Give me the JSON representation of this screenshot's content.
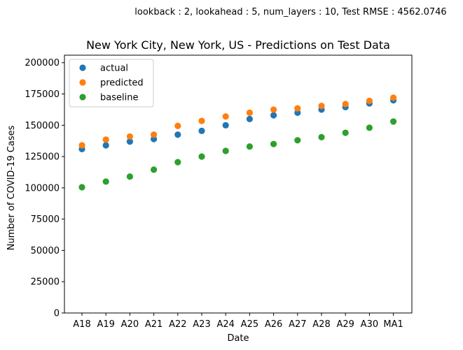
{
  "chart_data": {
    "type": "scatter",
    "suptitle": "lookback : 2, lookahead : 5, num_layers : 10, Test RMSE : 4562.0746",
    "title": "New York City, New York, US - Predictions on Test Data",
    "xlabel": "Date",
    "ylabel": "Number of COVID-19 Cases",
    "ylim": [
      0,
      206000
    ],
    "yticks": [
      0,
      25000,
      50000,
      75000,
      100000,
      125000,
      150000,
      175000,
      200000
    ],
    "grid": false,
    "legend_position": "top-left",
    "categories": [
      "A18",
      "A19",
      "A20",
      "A21",
      "A22",
      "A23",
      "A24",
      "A25",
      "A26",
      "A27",
      "A28",
      "A29",
      "A30",
      "MA1"
    ],
    "series": [
      {
        "name": "actual",
        "color": "#1f77b4",
        "values": [
          131000,
          134000,
          137000,
          139000,
          142500,
          145500,
          150000,
          155000,
          158000,
          160000,
          162500,
          164500,
          167500,
          170000
        ]
      },
      {
        "name": "predicted",
        "color": "#ff7f0e",
        "values": [
          134000,
          138500,
          141000,
          142500,
          149500,
          153500,
          157000,
          160000,
          162500,
          163500,
          165500,
          167000,
          169500,
          172000
        ]
      },
      {
        "name": "baseline",
        "color": "#2ca02c",
        "values": [
          100500,
          105000,
          109000,
          114500,
          120500,
          125000,
          129500,
          133000,
          135000,
          138000,
          140500,
          144000,
          148000,
          153000
        ]
      }
    ]
  }
}
